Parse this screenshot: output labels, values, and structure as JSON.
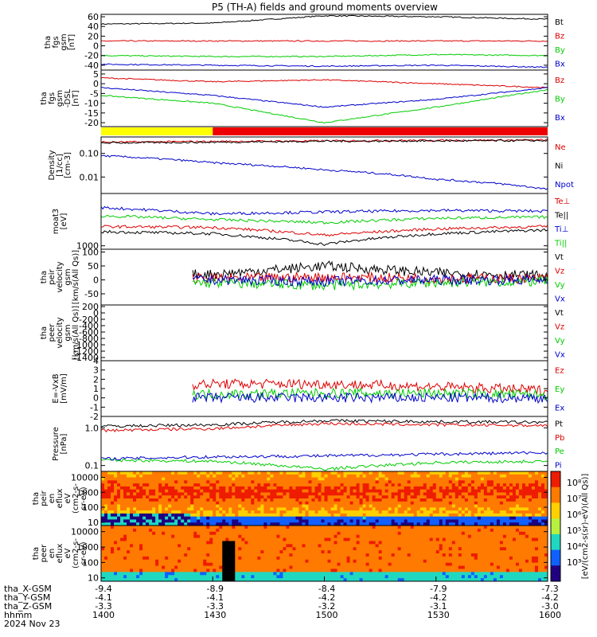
{
  "title": "P5 (TH-A) fields and ground moments overview",
  "colors": {
    "black": "#000000",
    "red": "#dd0000",
    "green": "#00cc00",
    "blue": "#0000cc",
    "yellow": "#ffff00",
    "barred": "#ee0000"
  },
  "chart_data": [
    {
      "type": "line",
      "id": "fgs_gsm",
      "ylabel": [
        "tha",
        "fgs",
        "gsm",
        "[nT]"
      ],
      "ylim": [
        -50,
        65
      ],
      "yticks": [
        "60",
        "40",
        "20",
        "0",
        "-20",
        "-40"
      ],
      "ytick_values": [
        60,
        40,
        20,
        0,
        -20,
        -40
      ],
      "series": [
        {
          "name": "Bt",
          "color": "#000000",
          "base": 45,
          "amp": 3,
          "trend": [
            45,
            47,
            62,
            60,
            55
          ]
        },
        {
          "name": "Bz",
          "color": "#dd0000",
          "base": 10,
          "amp": 1,
          "trend": [
            10,
            10,
            10,
            10,
            10
          ]
        },
        {
          "name": "By",
          "color": "#00cc00",
          "base": -20,
          "amp": 2,
          "trend": [
            -20,
            -22,
            -22,
            -18,
            -20
          ]
        },
        {
          "name": "Bx",
          "color": "#0000cc",
          "base": -37,
          "amp": 2,
          "trend": [
            -38,
            -40,
            -42,
            -40,
            -44
          ]
        }
      ]
    },
    {
      "type": "line",
      "id": "fgs_dsl",
      "ylabel": [
        "tha",
        "fgs",
        "gsm",
        "-DSL",
        "[nT]"
      ],
      "ylim": [
        -22,
        7
      ],
      "yticks": [
        "5",
        "0",
        "-5",
        "-10",
        "-15",
        "-20"
      ],
      "ytick_values": [
        5,
        0,
        -5,
        -10,
        -15,
        -20
      ],
      "series": [
        {
          "name": "Bz",
          "color": "#dd0000",
          "base": 2,
          "amp": 2,
          "trend": [
            3,
            1,
            2,
            0,
            -2
          ]
        },
        {
          "name": "By",
          "color": "#00cc00",
          "base": -8,
          "amp": 3,
          "trend": [
            -6,
            -10,
            -20,
            -12,
            -3
          ]
        },
        {
          "name": "Bx",
          "color": "#0000cc",
          "base": -4,
          "amp": 2,
          "trend": [
            -2,
            -6,
            -12,
            -8,
            -2
          ]
        }
      ]
    },
    {
      "type": "line",
      "id": "density",
      "log": true,
      "ylabel": [
        "Density",
        "[1/cc]",
        "[cm-3]"
      ],
      "ylim": [
        0.002,
        0.5
      ],
      "yticks": [
        "0.10",
        "0.01"
      ],
      "ytick_values": [
        0.1,
        0.01
      ],
      "series": [
        {
          "name": "Ne",
          "color": "#dd0000",
          "trend": [
            0.3,
            0.32,
            0.34,
            0.36,
            0.37
          ]
        },
        {
          "name": "Ni",
          "color": "#000000",
          "trend": [
            0.28,
            0.3,
            0.33,
            0.34,
            0.35
          ]
        },
        {
          "name": "Npot",
          "color": "#0000cc",
          "trend": [
            0.08,
            0.04,
            0.02,
            0.008,
            0.003
          ]
        }
      ]
    },
    {
      "type": "line",
      "id": "temperature",
      "log": true,
      "ylabel": [
        "moat3",
        "[eV]"
      ],
      "ylim": [
        800,
        30000
      ],
      "yticks": [
        "1000"
      ],
      "ytick_values": [
        1000
      ],
      "series": [
        {
          "name": "Te⊥",
          "color": "#dd0000",
          "trend": [
            3500,
            3300,
            2000,
            3000,
            3500
          ]
        },
        {
          "name": "Te||",
          "color": "#000000",
          "trend": [
            2500,
            2200,
            1100,
            2200,
            2800
          ]
        },
        {
          "name": "Ti⊥",
          "color": "#0000cc",
          "trend": [
            12000,
            8000,
            9000,
            10000,
            9500
          ]
        },
        {
          "name": "Ti||",
          "color": "#00cc00",
          "trend": [
            7000,
            5500,
            4500,
            6000,
            6500
          ]
        }
      ]
    },
    {
      "type": "line",
      "id": "peir_velocity",
      "ylabel": [
        "tha",
        "peir",
        "velocity",
        "gsm",
        "[km/s(All Qs)]"
      ],
      "ylim": [
        -90,
        110
      ],
      "yticks": [
        "100",
        "50",
        "0",
        "-50"
      ],
      "ytick_values": [
        100,
        50,
        0,
        -50
      ],
      "series": [
        {
          "name": "Vt",
          "color": "#000000",
          "trend": [
            20,
            20,
            50,
            25,
            15
          ]
        },
        {
          "name": "Vz",
          "color": "#dd0000",
          "trend": [
            5,
            5,
            10,
            5,
            5
          ]
        },
        {
          "name": "Vy",
          "color": "#00cc00",
          "trend": [
            -10,
            -10,
            -20,
            -10,
            -5
          ]
        },
        {
          "name": "Vx",
          "color": "#0000cc",
          "trend": [
            0,
            0,
            -5,
            0,
            0
          ]
        }
      ]
    },
    {
      "type": "line",
      "id": "peer_velocity",
      "ylabel": [
        "tha",
        "peer",
        "velocity",
        "gsm",
        "[km/s(All Qs)]"
      ],
      "ylim": [
        -1500,
        250
      ],
      "yticks": [
        "200",
        "0",
        "-200",
        "-400",
        "-600",
        "-800",
        "-1000",
        "-1200",
        "-1400"
      ],
      "ytick_values": [
        200,
        0,
        -200,
        -400,
        -600,
        -800,
        -1000,
        -1200,
        -1400
      ],
      "series": [
        {
          "name": "Vt",
          "color": "#000000"
        },
        {
          "name": "Vz",
          "color": "#dd0000"
        },
        {
          "name": "Vy",
          "color": "#00cc00"
        },
        {
          "name": "Vx",
          "color": "#0000cc"
        }
      ]
    },
    {
      "type": "line",
      "id": "efield",
      "ylabel": [
        "E=-VxB",
        "[mV/m]"
      ],
      "ylim": [
        -2,
        4
      ],
      "yticks": [
        "4",
        "3",
        "2",
        "1",
        "0",
        "-1",
        "-2"
      ],
      "ytick_values": [
        4,
        3,
        2,
        1,
        0,
        -1,
        -2
      ],
      "series": [
        {
          "name": "Ez",
          "color": "#dd0000",
          "trend": [
            1,
            1.5,
            1.5,
            1.2,
            0.8
          ]
        },
        {
          "name": "Ey",
          "color": "#00cc00",
          "trend": [
            0.3,
            0.4,
            0.5,
            0.5,
            0.3
          ]
        },
        {
          "name": "Ex",
          "color": "#0000cc",
          "trend": [
            0,
            0,
            0,
            0,
            0
          ]
        }
      ]
    },
    {
      "type": "line",
      "id": "pressure",
      "log": true,
      "ylabel": [
        "Pressure",
        "[nPa]"
      ],
      "ylim": [
        0.07,
        2
      ],
      "yticks": [
        "1.0",
        "0.1"
      ],
      "ytick_values": [
        1.0,
        0.1
      ],
      "series": [
        {
          "name": "Pt",
          "color": "#000000",
          "trend": [
            1.1,
            1.2,
            1.55,
            1.45,
            1.4
          ]
        },
        {
          "name": "Pb",
          "color": "#dd0000",
          "trend": [
            0.85,
            0.95,
            1.3,
            1.2,
            1.15
          ]
        },
        {
          "name": "Pe",
          "color": "#00cc00",
          "trend": [
            0.14,
            0.13,
            0.08,
            0.12,
            0.13
          ]
        },
        {
          "name": "Pi",
          "color": "#0000cc",
          "trend": [
            0.15,
            0.17,
            0.18,
            0.2,
            0.22
          ]
        }
      ]
    },
    {
      "type": "heatmap",
      "id": "peir_spec",
      "log": true,
      "ylabel": [
        "tha",
        "peir",
        "en",
        "eflux",
        "eV",
        "(cm2-s-",
        "sr-eV)"
      ],
      "ylim": [
        6,
        25000
      ],
      "yticks": [
        "10000",
        "1000",
        "100",
        "10"
      ],
      "ytick_values": [
        10000,
        1000,
        100,
        10
      ]
    },
    {
      "type": "heatmap",
      "id": "peer_spec",
      "log": true,
      "ylabel": [
        "tha",
        "peer",
        "en",
        "eflux",
        "eV",
        "(cm2-s-",
        "sr-eV)"
      ],
      "ylim": [
        6,
        25000
      ],
      "yticks": [
        "10000",
        "1000",
        "100",
        "10"
      ],
      "ytick_values": [
        10000,
        1000,
        100,
        10
      ]
    }
  ],
  "mode_bar": {
    "segments": [
      {
        "color": "#ffff00",
        "from": 0,
        "to": 0.25
      },
      {
        "color": "#ee0000",
        "from": 0.25,
        "to": 1
      }
    ]
  },
  "colorbar_label": "[eV/(cm2-s(sr)-eV)(All Qs)]",
  "colorbar_ticks": [
    "10⁸",
    "10⁷",
    "10⁶",
    "10⁵",
    "10⁴",
    "10³"
  ],
  "x_axis": {
    "rows": [
      "tha_X-GSM",
      "tha_Y-GSM",
      "tha_Z-GSM",
      "hhmm",
      "2024 Nov 23"
    ],
    "ticks": [
      [
        "-9.4",
        "-4.1",
        "-3.3",
        "1400"
      ],
      [
        "-8.9",
        "-4.1",
        "-3.3",
        "1430"
      ],
      [
        "-8.4",
        "-4.2",
        "-3.2",
        "1500"
      ],
      [
        "-7.9",
        "-4.2",
        "-3.1",
        "1530"
      ],
      [
        "-7.3",
        "-4.2",
        "-3.0",
        "1600"
      ]
    ]
  }
}
